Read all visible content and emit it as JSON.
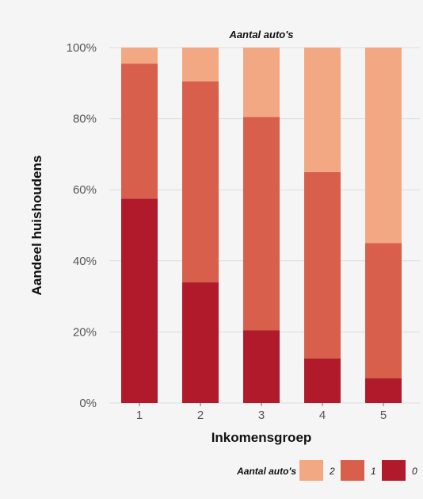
{
  "chart_data": {
    "type": "bar",
    "stacked": true,
    "title": "Aantal auto's",
    "xlabel": "Inkomensgroep",
    "ylabel": "Aandeel huishoudens",
    "categories": [
      "1",
      "2",
      "3",
      "4",
      "5"
    ],
    "ylim": [
      0,
      100
    ],
    "yticks": [
      "0%",
      "20%",
      "40%",
      "60%",
      "80%",
      "100%"
    ],
    "grid": true,
    "legend": {
      "title": "Aantal auto's",
      "position": "bottom",
      "entries": [
        "2",
        "1",
        "0"
      ]
    },
    "series": [
      {
        "name": "0",
        "color": "#b01a2b",
        "values": [
          57.5,
          34,
          20.5,
          12.5,
          7
        ]
      },
      {
        "name": "1",
        "color": "#d85f4b",
        "values": [
          38,
          56.5,
          60,
          52.5,
          38
        ]
      },
      {
        "name": "2",
        "color": "#f3a884",
        "values": [
          4.5,
          9.5,
          19.5,
          35,
          55
        ]
      }
    ]
  }
}
